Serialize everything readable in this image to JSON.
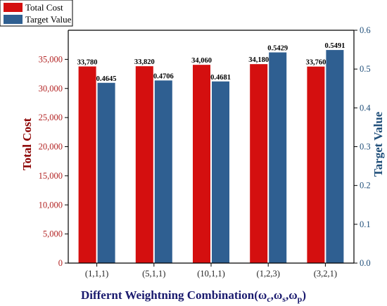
{
  "chart_data": {
    "type": "bar",
    "categories": [
      "(1,1,1)",
      "(5,1,1)",
      "(10,1,1)",
      "(1,2,3)",
      "(3,2,1)"
    ],
    "series": [
      {
        "name": "Total Cost",
        "axis": "left",
        "color": "#d40f0f",
        "values": [
          33780,
          33820,
          34060,
          34180,
          33760
        ],
        "labels": [
          "33,780",
          "33,820",
          "34,060",
          "34,180",
          "33,760"
        ]
      },
      {
        "name": "Target Value",
        "axis": "right",
        "color": "#2f5f91",
        "values": [
          0.4645,
          0.4706,
          0.4681,
          0.5429,
          0.5491
        ],
        "labels": [
          "0.4645",
          "0.4706",
          "0.4681",
          "0.5429",
          "0.5491"
        ]
      }
    ],
    "title": "",
    "xlabel_main": "Differnt Weightning Combination(ω",
    "xlabel_sub": [
      "c",
      "s",
      "p"
    ],
    "xlabel_seps": [
      ",ω",
      ",ω",
      ")"
    ],
    "ylabel_left": "Total Cost",
    "ylabel_right": "Target Value",
    "ylim_left": [
      0,
      40000
    ],
    "ylim_right": [
      0,
      0.6
    ],
    "yticks_left": [
      0,
      5000,
      10000,
      15000,
      20000,
      25000,
      30000,
      35000
    ],
    "yticks_left_labels": [
      "0",
      "5,000",
      "10,000",
      "15,000",
      "20,000",
      "25,000",
      "30,000",
      "35,000"
    ],
    "yticks_right": [
      0,
      0.1,
      0.2,
      0.3,
      0.4,
      0.5,
      0.6
    ],
    "yticks_right_labels": [
      "0.0",
      "0.1",
      "0.2",
      "0.3",
      "0.4",
      "0.5",
      "0.6"
    ],
    "legend_position": "top-left",
    "grid": false
  }
}
